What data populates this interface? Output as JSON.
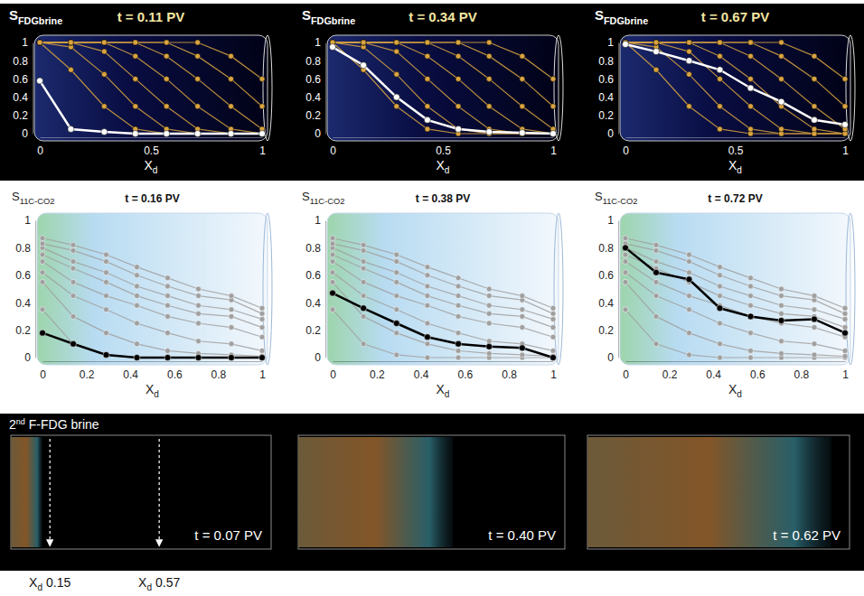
{
  "chart_data": [
    {
      "type": "line",
      "title": "t = 0.11 PV",
      "ylabel": {
        "main": "S",
        "sub": "FDGbrine"
      },
      "xlabel": {
        "main": "X",
        "sub": "d"
      },
      "x": [
        0,
        0.14,
        0.29,
        0.43,
        0.57,
        0.71,
        0.86,
        1
      ],
      "xlim": [
        0,
        1
      ],
      "ylim": [
        0,
        1
      ],
      "xticks": [
        0,
        0.5,
        1
      ],
      "yticks": [
        0,
        0.2,
        0.4,
        0.6,
        0.8,
        1
      ],
      "marker": "circle",
      "series": [
        {
          "color": "#d9a441",
          "values": [
            1,
            0.7,
            0.3,
            0.05,
            0,
            0,
            0,
            0
          ]
        },
        {
          "color": "#d9a441",
          "values": [
            1,
            0.95,
            0.65,
            0.3,
            0.05,
            0,
            0,
            0
          ]
        },
        {
          "color": "#d9a441",
          "values": [
            1,
            1,
            0.9,
            0.6,
            0.3,
            0.05,
            0,
            0
          ]
        },
        {
          "color": "#d9a441",
          "values": [
            1,
            1,
            1,
            0.85,
            0.6,
            0.3,
            0.05,
            0
          ]
        },
        {
          "color": "#d9a441",
          "values": [
            1,
            1,
            1,
            1,
            0.85,
            0.6,
            0.3,
            0.05
          ]
        },
        {
          "color": "#d9a441",
          "values": [
            1,
            1,
            1,
            1,
            1,
            0.85,
            0.6,
            0.3
          ]
        },
        {
          "color": "#d9a441",
          "values": [
            1,
            1,
            1,
            1,
            1,
            1,
            0.85,
            0.6
          ]
        },
        {
          "color": "#ffffff",
          "values": [
            0.58,
            0.05,
            0.02,
            0,
            0,
            0,
            0,
            0
          ]
        }
      ]
    },
    {
      "type": "line",
      "title": "t = 0.34 PV",
      "ylabel": {
        "main": "S",
        "sub": "FDGbrine"
      },
      "xlabel": {
        "main": "X",
        "sub": "d"
      },
      "x": [
        0,
        0.14,
        0.29,
        0.43,
        0.57,
        0.71,
        0.86,
        1
      ],
      "xlim": [
        0,
        1
      ],
      "ylim": [
        0,
        1
      ],
      "xticks": [
        0,
        0.5,
        1
      ],
      "yticks": [
        0,
        0.2,
        0.4,
        0.6,
        0.8,
        1
      ],
      "marker": "circle",
      "series": [
        {
          "color": "#d9a441",
          "values": [
            1,
            0.7,
            0.3,
            0.05,
            0,
            0,
            0,
            0
          ]
        },
        {
          "color": "#d9a441",
          "values": [
            1,
            0.95,
            0.65,
            0.3,
            0.05,
            0,
            0,
            0
          ]
        },
        {
          "color": "#d9a441",
          "values": [
            1,
            1,
            0.9,
            0.6,
            0.3,
            0.05,
            0,
            0
          ]
        },
        {
          "color": "#d9a441",
          "values": [
            1,
            1,
            1,
            0.85,
            0.6,
            0.3,
            0.05,
            0
          ]
        },
        {
          "color": "#d9a441",
          "values": [
            1,
            1,
            1,
            1,
            0.85,
            0.6,
            0.3,
            0.05
          ]
        },
        {
          "color": "#d9a441",
          "values": [
            1,
            1,
            1,
            1,
            1,
            0.85,
            0.6,
            0.3
          ]
        },
        {
          "color": "#d9a441",
          "values": [
            1,
            1,
            1,
            1,
            1,
            1,
            0.85,
            0.6
          ]
        },
        {
          "color": "#ffffff",
          "values": [
            0.95,
            0.75,
            0.4,
            0.15,
            0.05,
            0.02,
            0.01,
            0
          ]
        }
      ]
    },
    {
      "type": "line",
      "title": "t = 0.67 PV",
      "ylabel": {
        "main": "S",
        "sub": "FDGbrine"
      },
      "xlabel": {
        "main": "X",
        "sub": "d"
      },
      "x": [
        0,
        0.14,
        0.29,
        0.43,
        0.57,
        0.71,
        0.86,
        1
      ],
      "xlim": [
        0,
        1
      ],
      "ylim": [
        0,
        1
      ],
      "xticks": [
        0,
        0.5,
        1
      ],
      "yticks": [
        0,
        0.2,
        0.4,
        0.6,
        0.8,
        1
      ],
      "marker": "circle",
      "series": [
        {
          "color": "#d9a441",
          "values": [
            1,
            0.7,
            0.3,
            0.05,
            0,
            0,
            0,
            0
          ]
        },
        {
          "color": "#d9a441",
          "values": [
            1,
            0.95,
            0.65,
            0.3,
            0.05,
            0,
            0,
            0
          ]
        },
        {
          "color": "#d9a441",
          "values": [
            1,
            1,
            0.9,
            0.6,
            0.3,
            0.05,
            0,
            0
          ]
        },
        {
          "color": "#d9a441",
          "values": [
            1,
            1,
            1,
            0.85,
            0.6,
            0.3,
            0.05,
            0
          ]
        },
        {
          "color": "#d9a441",
          "values": [
            1,
            1,
            1,
            1,
            0.85,
            0.6,
            0.3,
            0.05
          ]
        },
        {
          "color": "#d9a441",
          "values": [
            1,
            1,
            1,
            1,
            1,
            0.85,
            0.6,
            0.3
          ]
        },
        {
          "color": "#d9a441",
          "values": [
            1,
            1,
            1,
            1,
            1,
            1,
            0.85,
            0.6
          ]
        },
        {
          "color": "#ffffff",
          "values": [
            0.98,
            0.9,
            0.8,
            0.7,
            0.5,
            0.35,
            0.15,
            0.1
          ]
        }
      ]
    },
    {
      "type": "line",
      "title": "t = 0.16 PV",
      "ylabel": {
        "main": "S",
        "sub": "11C-CO2"
      },
      "xlabel": {
        "main": "X",
        "sub": "d"
      },
      "x": [
        0,
        0.14,
        0.29,
        0.43,
        0.57,
        0.71,
        0.86,
        1
      ],
      "xlim": [
        0,
        1
      ],
      "ylim": [
        0,
        1
      ],
      "xticks": [
        0,
        0.2,
        0.4,
        0.6,
        0.8,
        1
      ],
      "yticks": [
        0,
        0.2,
        0.4,
        0.6,
        0.8,
        1
      ],
      "marker": "circle",
      "series": [
        {
          "color": "#a0a0a0",
          "values": [
            0.35,
            0.1,
            0.02,
            0,
            0,
            0,
            0,
            0
          ]
        },
        {
          "color": "#a0a0a0",
          "values": [
            0.55,
            0.3,
            0.18,
            0.1,
            0.05,
            0.03,
            0.02,
            0.01
          ]
        },
        {
          "color": "#a0a0a0",
          "values": [
            0.62,
            0.45,
            0.35,
            0.25,
            0.18,
            0.12,
            0.1,
            0.05
          ]
        },
        {
          "color": "#a0a0a0",
          "values": [
            0.7,
            0.55,
            0.45,
            0.38,
            0.3,
            0.25,
            0.22,
            0.15
          ]
        },
        {
          "color": "#a0a0a0",
          "values": [
            0.75,
            0.65,
            0.55,
            0.45,
            0.38,
            0.32,
            0.3,
            0.22
          ]
        },
        {
          "color": "#a0a0a0",
          "values": [
            0.8,
            0.7,
            0.62,
            0.52,
            0.45,
            0.38,
            0.35,
            0.28
          ]
        },
        {
          "color": "#a0a0a0",
          "values": [
            0.83,
            0.78,
            0.7,
            0.6,
            0.52,
            0.45,
            0.42,
            0.32
          ]
        },
        {
          "color": "#a0a0a0",
          "values": [
            0.87,
            0.82,
            0.75,
            0.66,
            0.58,
            0.5,
            0.45,
            0.36
          ]
        },
        {
          "color": "#000000",
          "values": [
            0.18,
            0.1,
            0.02,
            0,
            0,
            0,
            0,
            0
          ]
        }
      ]
    },
    {
      "type": "line",
      "title": "t = 0.38 PV",
      "ylabel": {
        "main": "S",
        "sub": "11C-CO2"
      },
      "xlabel": {
        "main": "X",
        "sub": "d"
      },
      "x": [
        0,
        0.14,
        0.29,
        0.43,
        0.57,
        0.71,
        0.86,
        1
      ],
      "xlim": [
        0,
        1
      ],
      "ylim": [
        0,
        1
      ],
      "xticks": [
        0,
        0.2,
        0.4,
        0.6,
        0.8,
        1
      ],
      "yticks": [
        0,
        0.2,
        0.4,
        0.6,
        0.8,
        1
      ],
      "marker": "circle",
      "series": [
        {
          "color": "#a0a0a0",
          "values": [
            0.35,
            0.1,
            0.02,
            0,
            0,
            0,
            0,
            0
          ]
        },
        {
          "color": "#a0a0a0",
          "values": [
            0.55,
            0.3,
            0.18,
            0.1,
            0.05,
            0.03,
            0.02,
            0.01
          ]
        },
        {
          "color": "#a0a0a0",
          "values": [
            0.62,
            0.45,
            0.35,
            0.25,
            0.18,
            0.12,
            0.1,
            0.05
          ]
        },
        {
          "color": "#a0a0a0",
          "values": [
            0.7,
            0.55,
            0.45,
            0.38,
            0.3,
            0.25,
            0.22,
            0.15
          ]
        },
        {
          "color": "#a0a0a0",
          "values": [
            0.75,
            0.65,
            0.55,
            0.45,
            0.38,
            0.32,
            0.3,
            0.22
          ]
        },
        {
          "color": "#a0a0a0",
          "values": [
            0.8,
            0.7,
            0.62,
            0.52,
            0.45,
            0.38,
            0.35,
            0.28
          ]
        },
        {
          "color": "#a0a0a0",
          "values": [
            0.83,
            0.78,
            0.7,
            0.6,
            0.52,
            0.45,
            0.42,
            0.32
          ]
        },
        {
          "color": "#a0a0a0",
          "values": [
            0.87,
            0.82,
            0.75,
            0.66,
            0.58,
            0.5,
            0.45,
            0.36
          ]
        },
        {
          "color": "#000000",
          "values": [
            0.47,
            0.36,
            0.25,
            0.15,
            0.1,
            0.08,
            0.07,
            0
          ]
        }
      ]
    },
    {
      "type": "line",
      "title": "t = 0.72 PV",
      "ylabel": {
        "main": "S",
        "sub": "11C-CO2"
      },
      "xlabel": {
        "main": "X",
        "sub": "d"
      },
      "x": [
        0,
        0.14,
        0.29,
        0.43,
        0.57,
        0.71,
        0.86,
        1
      ],
      "xlim": [
        0,
        1
      ],
      "ylim": [
        0,
        1
      ],
      "xticks": [
        0,
        0.2,
        0.4,
        0.6,
        0.8,
        1
      ],
      "yticks": [
        0,
        0.2,
        0.4,
        0.6,
        0.8,
        1
      ],
      "marker": "circle",
      "series": [
        {
          "color": "#a0a0a0",
          "values": [
            0.35,
            0.1,
            0.02,
            0,
            0,
            0,
            0,
            0
          ]
        },
        {
          "color": "#a0a0a0",
          "values": [
            0.55,
            0.3,
            0.18,
            0.1,
            0.05,
            0.03,
            0.02,
            0.01
          ]
        },
        {
          "color": "#a0a0a0",
          "values": [
            0.62,
            0.45,
            0.35,
            0.25,
            0.18,
            0.12,
            0.1,
            0.05
          ]
        },
        {
          "color": "#a0a0a0",
          "values": [
            0.7,
            0.55,
            0.45,
            0.38,
            0.3,
            0.25,
            0.22,
            0.15
          ]
        },
        {
          "color": "#a0a0a0",
          "values": [
            0.75,
            0.65,
            0.55,
            0.45,
            0.38,
            0.32,
            0.3,
            0.22
          ]
        },
        {
          "color": "#a0a0a0",
          "values": [
            0.8,
            0.7,
            0.62,
            0.52,
            0.45,
            0.38,
            0.35,
            0.28
          ]
        },
        {
          "color": "#a0a0a0",
          "values": [
            0.83,
            0.78,
            0.7,
            0.6,
            0.52,
            0.45,
            0.42,
            0.32
          ]
        },
        {
          "color": "#a0a0a0",
          "values": [
            0.87,
            0.82,
            0.75,
            0.66,
            0.58,
            0.5,
            0.45,
            0.36
          ]
        },
        {
          "color": "#000000",
          "values": [
            0.8,
            0.62,
            0.57,
            0.36,
            0.3,
            0.27,
            0.28,
            0.18
          ]
        }
      ]
    },
    {
      "type": "image",
      "title": {
        "main": "2",
        "sup": "nd",
        "rest": "F-FDG brine"
      },
      "panels": [
        {
          "title": "t = 0.07 PV",
          "front": 0.12
        },
        {
          "title": "t = 0.40 PV",
          "front": 0.58
        },
        {
          "title": "t = 0.62 PV",
          "front": 0.93
        }
      ],
      "annotations": [
        {
          "label": "X",
          "sub": "d",
          "value": 0.15
        },
        {
          "label": "X",
          "sub": "d",
          "value": 0.57
        }
      ]
    }
  ]
}
